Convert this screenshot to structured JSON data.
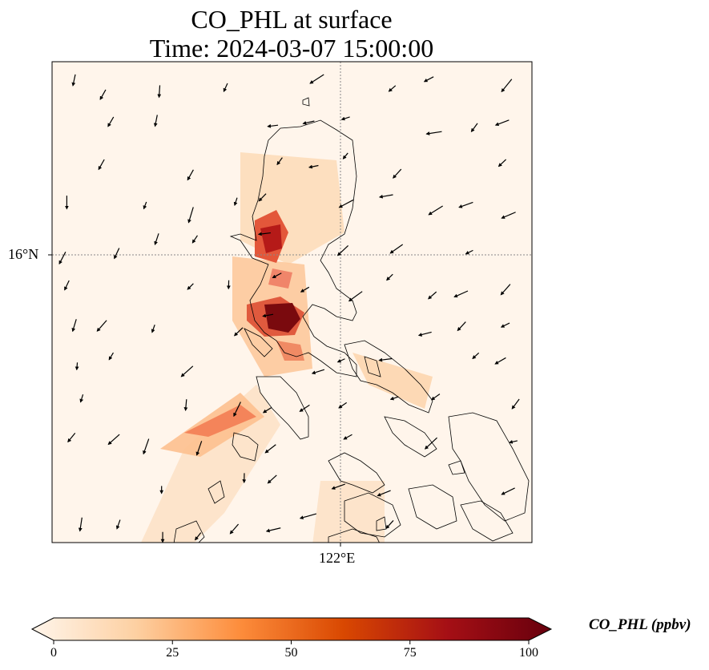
{
  "title_line1": "CO_PHL at surface",
  "title_line2": "Time: 2024-03-07 15:00:00",
  "lat_label": "16°N",
  "lon_label": "122°E",
  "colorbar": {
    "label": "CO_PHL (ppbv)",
    "ticks": [
      "0",
      "25",
      "50",
      "75",
      "100"
    ],
    "min": 0,
    "max": 100,
    "colors": [
      "#fff5eb",
      "#fdd0a2",
      "#fd8d3c",
      "#d94801",
      "#a50f15",
      "#67000d"
    ]
  },
  "colors": {
    "land_outline": "#000000",
    "gridline": "#888888",
    "wind_vector": "#000000"
  }
}
